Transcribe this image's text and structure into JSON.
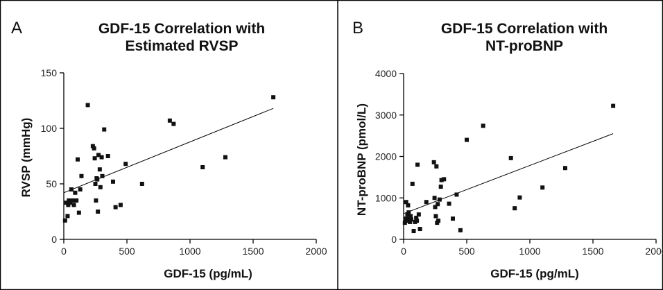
{
  "chart_data": [
    {
      "type": "scatter",
      "panel_letter": "A",
      "title_line1": "GDF-15 Correlation with",
      "title_line2": "Estimated RVSP",
      "xlabel": "GDF-15 (pg/mL)",
      "ylabel": "RVSP (mmHg)",
      "xlim": [
        0,
        2000
      ],
      "ylim": [
        0,
        150
      ],
      "xticks": [
        0,
        500,
        1000,
        1500,
        2000
      ],
      "yticks": [
        0,
        50,
        100,
        150
      ],
      "x_tick_labels": [
        "0",
        "500",
        "1000",
        "1500",
        "2000"
      ],
      "y_tick_labels": [
        "0",
        "50",
        "100",
        "150"
      ],
      "grid": false,
      "legend": "none",
      "points": [
        [
          10,
          17
        ],
        [
          20,
          33
        ],
        [
          30,
          21
        ],
        [
          35,
          31
        ],
        [
          40,
          35
        ],
        [
          50,
          33
        ],
        [
          60,
          45
        ],
        [
          70,
          35
        ],
        [
          80,
          31
        ],
        [
          90,
          42
        ],
        [
          100,
          35
        ],
        [
          110,
          72
        ],
        [
          120,
          24
        ],
        [
          130,
          45
        ],
        [
          140,
          57
        ],
        [
          190,
          121
        ],
        [
          230,
          84
        ],
        [
          240,
          82
        ],
        [
          245,
          73
        ],
        [
          250,
          50
        ],
        [
          255,
          35
        ],
        [
          260,
          55
        ],
        [
          265,
          54
        ],
        [
          270,
          25
        ],
        [
          275,
          76
        ],
        [
          285,
          63
        ],
        [
          290,
          47
        ],
        [
          300,
          74
        ],
        [
          305,
          57
        ],
        [
          320,
          99
        ],
        [
          350,
          75
        ],
        [
          390,
          52
        ],
        [
          410,
          29
        ],
        [
          450,
          31
        ],
        [
          490,
          68
        ],
        [
          620,
          50
        ],
        [
          840,
          107
        ],
        [
          870,
          104
        ],
        [
          1100,
          65
        ],
        [
          1280,
          74
        ],
        [
          1660,
          128
        ]
      ],
      "trendline": [
        [
          0,
          42
        ],
        [
          1660,
          118
        ]
      ]
    },
    {
      "type": "scatter",
      "panel_letter": "B",
      "title_line1": "GDF-15 Correlation with",
      "title_line2": "NT-proBNP",
      "xlabel": "GDF-15 (pg/mL)",
      "ylabel": "NT-proBNP (pmol/L)",
      "xlim": [
        0,
        2000
      ],
      "ylim": [
        0,
        4000
      ],
      "xticks": [
        0,
        500,
        1000,
        1500,
        2000
      ],
      "yticks": [
        0,
        1000,
        2000,
        3000,
        4000
      ],
      "x_tick_labels": [
        "0",
        "500",
        "1000",
        "1500",
        "2000"
      ],
      "y_tick_labels": [
        "0",
        "1000",
        "2000",
        "3000",
        "4000"
      ],
      "grid": false,
      "legend": "none",
      "points": [
        [
          10,
          400
        ],
        [
          15,
          500
        ],
        [
          20,
          900
        ],
        [
          25,
          450
        ],
        [
          30,
          600
        ],
        [
          35,
          820
        ],
        [
          40,
          650
        ],
        [
          45,
          500
        ],
        [
          50,
          420
        ],
        [
          55,
          560
        ],
        [
          60,
          480
        ],
        [
          70,
          1340
        ],
        [
          80,
          200
        ],
        [
          90,
          420
        ],
        [
          100,
          520
        ],
        [
          105,
          450
        ],
        [
          110,
          1800
        ],
        [
          120,
          600
        ],
        [
          130,
          250
        ],
        [
          180,
          900
        ],
        [
          240,
          1860
        ],
        [
          245,
          1000
        ],
        [
          250,
          780
        ],
        [
          255,
          560
        ],
        [
          260,
          1760
        ],
        [
          265,
          400
        ],
        [
          270,
          850
        ],
        [
          275,
          450
        ],
        [
          285,
          960
        ],
        [
          295,
          1270
        ],
        [
          300,
          1430
        ],
        [
          320,
          1450
        ],
        [
          360,
          860
        ],
        [
          390,
          500
        ],
        [
          420,
          1080
        ],
        [
          450,
          220
        ],
        [
          500,
          2400
        ],
        [
          630,
          2740
        ],
        [
          850,
          1960
        ],
        [
          880,
          750
        ],
        [
          920,
          1010
        ],
        [
          1100,
          1250
        ],
        [
          1280,
          1720
        ],
        [
          1660,
          3220
        ]
      ],
      "trendline": [
        [
          0,
          620
        ],
        [
          1660,
          2550
        ]
      ]
    }
  ]
}
